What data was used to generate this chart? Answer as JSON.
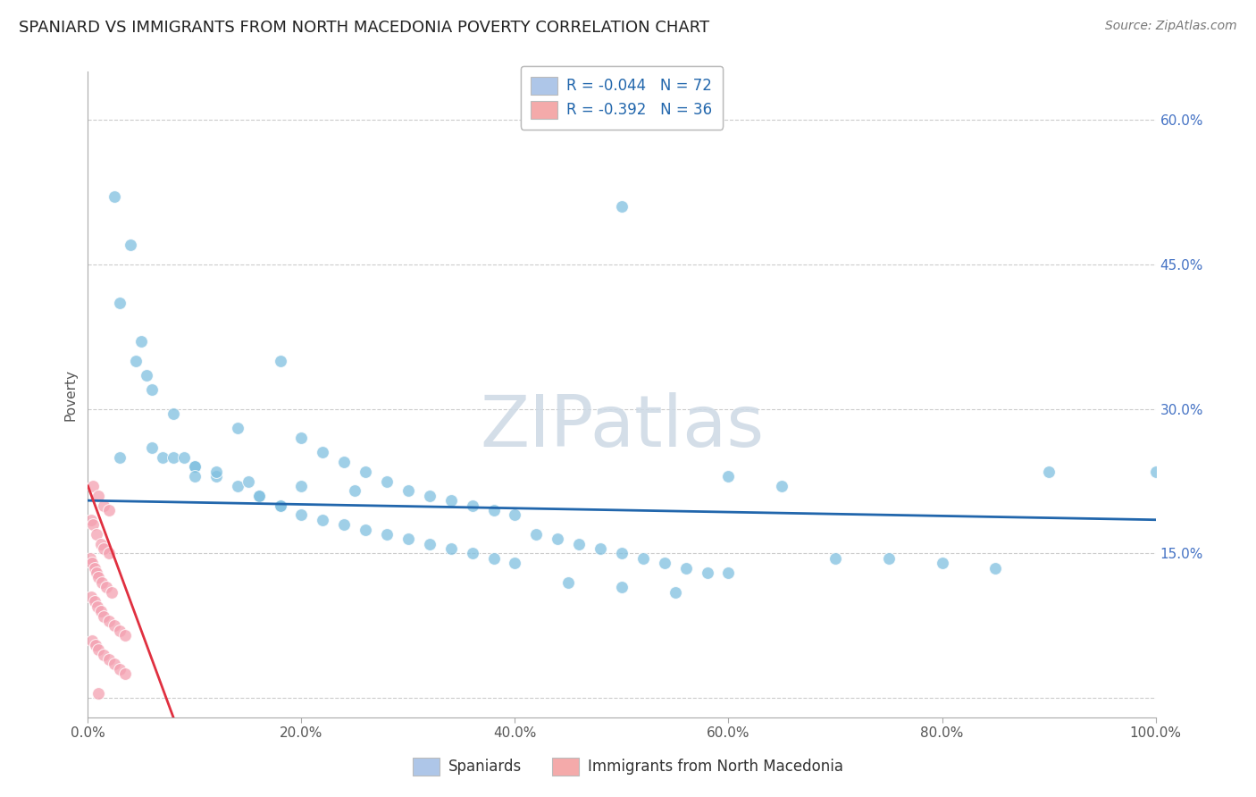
{
  "title": "SPANIARD VS IMMIGRANTS FROM NORTH MACEDONIA POVERTY CORRELATION CHART",
  "source": "Source: ZipAtlas.com",
  "ylabel": "Poverty",
  "watermark": "ZIPatlas",
  "legend_label1": "Spaniards",
  "legend_label2": "Immigrants from North Macedonia",
  "R1": -0.044,
  "N1": 72,
  "R2": -0.392,
  "N2": 36,
  "blue_color": "#7fbfdf",
  "pink_color": "#f4a0b0",
  "blue_line_color": "#2166ac",
  "pink_line_color": "#e03040",
  "blue_scatter_x": [
    2.5,
    4.0,
    3.0,
    5.0,
    4.5,
    50.0,
    7.0,
    8.0,
    9.0,
    5.5,
    6.0,
    10.0,
    12.0,
    14.0,
    16.0,
    18.0,
    20.0,
    22.0,
    24.0,
    26.0,
    28.0,
    30.0,
    32.0,
    34.0,
    36.0,
    38.0,
    40.0,
    3.0,
    6.0,
    8.0,
    10.0,
    12.0,
    14.0,
    16.0,
    18.0,
    20.0,
    22.0,
    24.0,
    26.0,
    28.0,
    30.0,
    32.0,
    34.0,
    36.0,
    38.0,
    40.0,
    42.0,
    44.0,
    46.0,
    48.0,
    50.0,
    52.0,
    54.0,
    56.0,
    58.0,
    60.0,
    65.0,
    70.0,
    75.0,
    80.0,
    85.0,
    90.0,
    18.0,
    60.0,
    45.0,
    50.0,
    55.0,
    10.0,
    15.0,
    20.0,
    25.0,
    100.0
  ],
  "blue_scatter_y": [
    52.0,
    47.0,
    41.0,
    37.0,
    35.0,
    51.0,
    25.0,
    25.0,
    25.0,
    33.5,
    32.0,
    24.0,
    23.0,
    22.0,
    21.0,
    35.0,
    27.0,
    25.5,
    24.5,
    23.5,
    22.5,
    21.5,
    21.0,
    20.5,
    20.0,
    19.5,
    19.0,
    25.0,
    26.0,
    29.5,
    24.0,
    23.5,
    28.0,
    21.0,
    20.0,
    19.0,
    18.5,
    18.0,
    17.5,
    17.0,
    16.5,
    16.0,
    15.5,
    15.0,
    14.5,
    14.0,
    17.0,
    16.5,
    16.0,
    15.5,
    15.0,
    14.5,
    14.0,
    13.5,
    13.0,
    23.0,
    22.0,
    14.5,
    14.5,
    14.0,
    13.5,
    23.5,
    20.0,
    13.0,
    12.0,
    11.5,
    11.0,
    23.0,
    22.5,
    22.0,
    21.5,
    23.5
  ],
  "pink_scatter_x": [
    0.5,
    1.0,
    1.5,
    2.0,
    0.3,
    0.5,
    0.8,
    1.2,
    1.5,
    2.0,
    0.2,
    0.4,
    0.6,
    0.8,
    1.0,
    1.3,
    1.7,
    2.2,
    0.3,
    0.6,
    0.9,
    1.2,
    1.5,
    2.0,
    2.5,
    3.0,
    3.5,
    0.4,
    0.7,
    1.0,
    1.5,
    2.0,
    2.5,
    3.0,
    3.5,
    1.0
  ],
  "pink_scatter_y": [
    22.0,
    21.0,
    20.0,
    19.5,
    18.5,
    18.0,
    17.0,
    16.0,
    15.5,
    15.0,
    14.5,
    14.0,
    13.5,
    13.0,
    12.5,
    12.0,
    11.5,
    11.0,
    10.5,
    10.0,
    9.5,
    9.0,
    8.5,
    8.0,
    7.5,
    7.0,
    6.5,
    6.0,
    5.5,
    5.0,
    4.5,
    4.0,
    3.5,
    3.0,
    2.5,
    0.5
  ],
  "xlim": [
    0,
    100
  ],
  "ylim": [
    -2,
    65
  ],
  "ytick_positions": [
    0,
    15,
    30,
    45,
    60
  ],
  "ytick_labels_right": [
    "",
    "15.0%",
    "30.0%",
    "45.0%",
    "60.0%"
  ],
  "xtick_positions": [
    0,
    20,
    40,
    60,
    80,
    100
  ],
  "xtick_labels": [
    "0.0%",
    "20.0%",
    "40.0%",
    "60.0%",
    "80.0%",
    "100.0%"
  ],
  "grid_color": "#cccccc",
  "background_color": "#ffffff",
  "title_fontsize": 13,
  "source_fontsize": 10,
  "axis_label_fontsize": 11,
  "tick_fontsize": 11,
  "watermark_fontsize": 58,
  "watermark_color": "#cdd9e5",
  "legend_box_color_blue": "#aec6e8",
  "legend_box_color_pink": "#f4aaaa",
  "legend_text_color": "#2166ac",
  "blue_line_x": [
    0,
    100
  ],
  "blue_line_y": [
    20.5,
    18.5
  ],
  "pink_line_x": [
    0,
    8
  ],
  "pink_line_y": [
    22.0,
    -2.0
  ]
}
